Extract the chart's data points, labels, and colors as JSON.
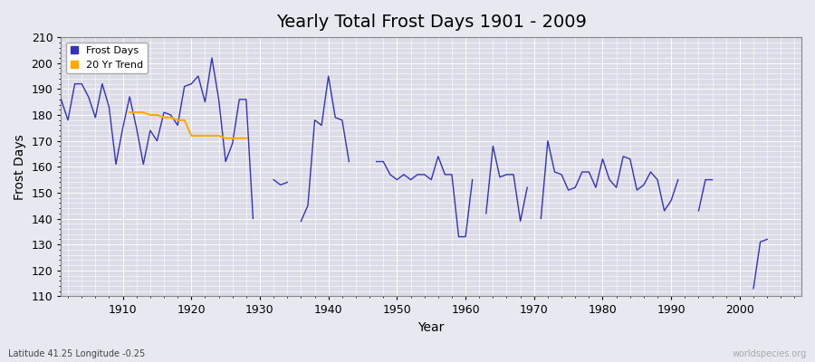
{
  "title": "Yearly Total Frost Days 1901 - 2009",
  "xlabel": "Year",
  "ylabel": "Frost Days",
  "subtitle": "Latitude 41.25 Longitude -0.25",
  "watermark": "worldspecies.org",
  "ylim": [
    110,
    210
  ],
  "xlim": [
    1901,
    2009
  ],
  "yticks": [
    110,
    120,
    130,
    140,
    150,
    160,
    170,
    180,
    190,
    200,
    210
  ],
  "xticks": [
    1910,
    1920,
    1930,
    1940,
    1950,
    1960,
    1970,
    1980,
    1990,
    2000
  ],
  "frost_days": {
    "years": [
      1901,
      1902,
      1903,
      1904,
      1905,
      1906,
      1907,
      1908,
      1909,
      1910,
      1911,
      1912,
      1913,
      1914,
      1915,
      1916,
      1917,
      1918,
      1919,
      1920,
      1921,
      1922,
      1923,
      1924,
      1925,
      1926,
      1927,
      1928,
      1929,
      1932,
      1933,
      1934,
      1936,
      1937,
      1938,
      1939,
      1940,
      1941,
      1942,
      1943,
      1947,
      1948,
      1949,
      1950,
      1951,
      1952,
      1953,
      1954,
      1955,
      1956,
      1957,
      1958,
      1959,
      1960,
      1961,
      1963,
      1964,
      1965,
      1966,
      1967,
      1968,
      1969,
      1971,
      1972,
      1973,
      1974,
      1975,
      1976,
      1977,
      1978,
      1979,
      1980,
      1981,
      1982,
      1983,
      1984,
      1985,
      1986,
      1987,
      1988,
      1989,
      1990,
      1991,
      1994,
      1995,
      1996,
      2002,
      2003,
      2004
    ],
    "values": [
      186,
      178,
      192,
      192,
      187,
      179,
      192,
      183,
      161,
      175,
      187,
      175,
      161,
      174,
      170,
      181,
      180,
      176,
      191,
      192,
      195,
      185,
      202,
      186,
      162,
      169,
      186,
      186,
      140,
      155,
      153,
      154,
      139,
      145,
      178,
      176,
      195,
      179,
      178,
      162,
      162,
      162,
      157,
      155,
      157,
      155,
      157,
      157,
      155,
      164,
      157,
      157,
      133,
      133,
      155,
      142,
      168,
      156,
      157,
      157,
      139,
      152,
      140,
      170,
      158,
      157,
      151,
      152,
      158,
      158,
      152,
      163,
      155,
      152,
      164,
      163,
      151,
      153,
      158,
      155,
      143,
      147,
      155,
      143,
      155,
      155,
      113,
      131,
      132
    ]
  },
  "trend_20yr": {
    "years": [
      1911,
      1912,
      1913,
      1914,
      1915,
      1916,
      1917,
      1918,
      1919,
      1920,
      1921,
      1922,
      1923,
      1924,
      1925,
      1926,
      1927,
      1928
    ],
    "values": [
      181,
      181,
      181,
      180,
      180,
      179,
      179,
      178,
      178,
      172,
      172,
      172,
      172,
      172,
      171,
      171,
      171,
      171
    ]
  },
  "frost_color": "#3333bb",
  "trend_color": "#ffaa00",
  "bg_color": "#e8e8f0",
  "plot_bg_color": "#dcdce8",
  "grid_color": "#ffffff",
  "title_fontsize": 14,
  "label_fontsize": 10,
  "tick_fontsize": 9
}
